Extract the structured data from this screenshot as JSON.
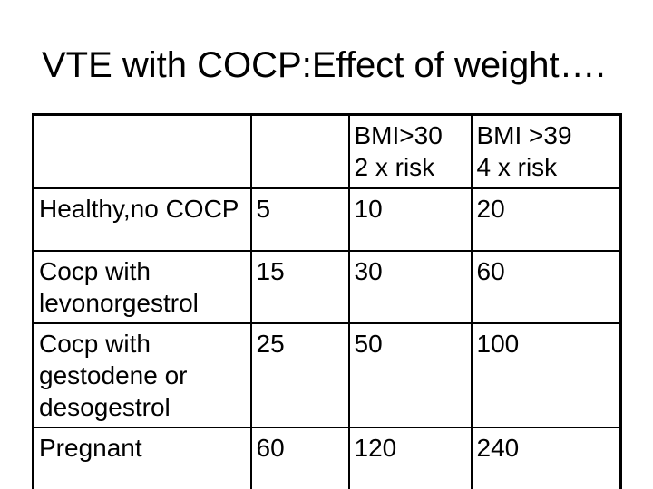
{
  "slide": {
    "title": "VTE with COCP:Effect of weight….",
    "background_color": "#ffffff",
    "text_color": "#000000"
  },
  "table": {
    "border_color": "#000000",
    "rows": [
      [
        "",
        "",
        "BMI>30\n2 x risk",
        "BMI >39\n4 x risk"
      ],
      [
        "Healthy,no COCP",
        "5",
        "10",
        "20"
      ],
      [
        "Cocp with\nlevonorgestrol",
        "15",
        "30",
        "60"
      ],
      [
        "Cocp with\ngestodene or\ndesogestrol",
        "25",
        "50",
        "100"
      ],
      [
        "Pregnant",
        "60",
        "120",
        "240"
      ]
    ]
  }
}
